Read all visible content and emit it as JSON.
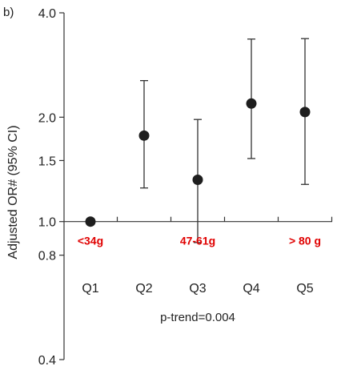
{
  "panel_label": "b)",
  "chart_data": {
    "type": "scatter",
    "title": "",
    "ylabel": "Adjusted OR# (95% CI)",
    "xlabel": "",
    "y_scale": "log",
    "ylim": [
      0.4,
      4.0
    ],
    "yticks": [
      0.4,
      0.8,
      1.0,
      1.5,
      2.0,
      4.0
    ],
    "ytick_labels": [
      "0.4",
      "0.8",
      "1.0",
      "1.5",
      "2.0",
      "4.0"
    ],
    "reference_line": 1.0,
    "categories": [
      "Q1",
      "Q2",
      "Q3",
      "Q4",
      "Q5"
    ],
    "points": [
      {
        "category": "Q1",
        "or": 1.0,
        "ci_low": null,
        "ci_high": null
      },
      {
        "category": "Q2",
        "or": 1.77,
        "ci_low": 1.25,
        "ci_high": 2.55
      },
      {
        "category": "Q3",
        "or": 1.32,
        "ci_low": 0.87,
        "ci_high": 1.97
      },
      {
        "category": "Q4",
        "or": 2.19,
        "ci_low": 1.52,
        "ci_high": 3.36
      },
      {
        "category": "Q5",
        "or": 2.07,
        "ci_low": 1.28,
        "ci_high": 3.37
      }
    ],
    "annotations": [
      {
        "category": "Q1",
        "text": "<34g"
      },
      {
        "category": "Q3",
        "text": "47-61g"
      },
      {
        "category": "Q5",
        "text": "> 80 g"
      }
    ],
    "note": "p-trend=0.004",
    "colors": {
      "points": "#1e1e1e",
      "annotation": "#e00000"
    }
  }
}
